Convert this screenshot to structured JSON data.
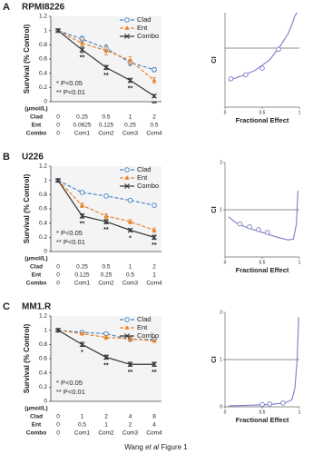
{
  "chart_data": [
    {
      "type": "line",
      "panel": "A",
      "title": "RPMI8226",
      "ylabel": "Survival (% Control)",
      "x_unit": "(µmol/L)",
      "categories": [
        "0",
        "Com1",
        "Com2",
        "Com3",
        "Com4"
      ],
      "ylim": [
        0,
        1.2
      ],
      "yticks": [
        0,
        0.2,
        0.4,
        0.6,
        0.8,
        1,
        1.2
      ],
      "series": [
        {
          "name": "Clad",
          "color": "#4a86c5",
          "marker": "circle",
          "dashed": true,
          "values": [
            1,
            0.88,
            0.75,
            0.55,
            0.45
          ],
          "errors": [
            0.02,
            0.04,
            0.05,
            0.04,
            0.03
          ],
          "doses": [
            0,
            0.25,
            0.5,
            1,
            2
          ]
        },
        {
          "name": "Ent",
          "color": "#e8822a",
          "marker": "triangle",
          "dashed": true,
          "values": [
            1,
            0.82,
            0.72,
            0.58,
            0.3
          ],
          "errors": [
            0.02,
            0.05,
            0.06,
            0.05,
            0.04
          ],
          "doses": [
            0,
            0.0625,
            0.125,
            0.25,
            0.5
          ]
        },
        {
          "name": "Combo",
          "color": "#333333",
          "marker": "x",
          "dashed": false,
          "values": [
            1,
            0.73,
            0.48,
            0.3,
            0.08
          ],
          "errors": [
            0.02,
            0.04,
            0.03,
            0.03,
            0.02
          ]
        }
      ],
      "stars": [
        null,
        "**",
        "**",
        "**",
        "**"
      ],
      "significance": [
        "* P<0.05",
        "** P<0.01"
      ]
    },
    {
      "type": "ci",
      "xlabel": "Fractional Effect",
      "ylabel": "CI",
      "xlim": [
        0,
        1
      ],
      "ylim": [
        0,
        1.6
      ],
      "xticks": [
        0,
        0.5,
        1
      ],
      "yticks": [],
      "reference": 1,
      "color": "#7b7bc8",
      "curve": {
        "x": [
          0.05,
          0.2,
          0.4,
          0.6,
          0.75,
          0.85,
          0.9,
          0.94,
          0.97
        ],
        "y": [
          0.45,
          0.52,
          0.62,
          0.8,
          1.05,
          1.25,
          1.4,
          1.55,
          1.6
        ]
      },
      "points": {
        "x": [
          0.08,
          0.28,
          0.5,
          0.72
        ],
        "y": [
          0.48,
          0.55,
          0.66,
          0.98
        ]
      }
    },
    {
      "type": "line",
      "panel": "B",
      "title": "U226",
      "ylabel": "Survival (% Control)",
      "x_unit": "(µmol/L)",
      "categories": [
        "0",
        "Com1",
        "Com2",
        "Com3",
        "Com4"
      ],
      "ylim": [
        0,
        1.2
      ],
      "yticks": [
        0,
        0.2,
        0.4,
        0.6,
        0.8,
        1,
        1.2
      ],
      "series": [
        {
          "name": "Clad",
          "color": "#4a86c5",
          "marker": "circle",
          "dashed": true,
          "values": [
            1,
            0.83,
            0.78,
            0.72,
            0.65
          ],
          "errors": [
            0.02,
            0.02,
            0.02,
            0.02,
            0.02
          ],
          "doses": [
            0,
            0.25,
            0.5,
            1,
            2
          ]
        },
        {
          "name": "Ent",
          "color": "#e8822a",
          "marker": "triangle",
          "dashed": true,
          "values": [
            1,
            0.65,
            0.5,
            0.42,
            0.3
          ],
          "errors": [
            0.02,
            0.03,
            0.03,
            0.03,
            0.03
          ],
          "doses": [
            0,
            0.125,
            0.25,
            0.5,
            1
          ]
        },
        {
          "name": "Combo",
          "color": "#333333",
          "marker": "x",
          "dashed": false,
          "values": [
            1,
            0.5,
            0.42,
            0.3,
            0.2
          ],
          "errors": [
            0.02,
            0.03,
            0.03,
            0.02,
            0.03
          ]
        }
      ],
      "stars": [
        null,
        "**",
        "**",
        "*",
        "**"
      ],
      "significance": [
        "* P<0.05",
        "** P<0.01"
      ]
    },
    {
      "type": "ci",
      "xlabel": "Fractional Effect",
      "ylabel": "CI",
      "xlim": [
        0,
        1
      ],
      "ylim": [
        0,
        2
      ],
      "xticks": [
        0,
        0.5,
        1
      ],
      "yticks": [
        1,
        2
      ],
      "reference": 1,
      "color": "#7b7bc8",
      "curve": {
        "x": [
          0.05,
          0.15,
          0.3,
          0.5,
          0.7,
          0.85,
          0.92,
          0.96,
          0.98
        ],
        "y": [
          0.85,
          0.72,
          0.62,
          0.52,
          0.42,
          0.36,
          0.38,
          0.7,
          1.4
        ]
      },
      "points": {
        "x": [
          0.2,
          0.33,
          0.45,
          0.57
        ],
        "y": [
          0.7,
          0.64,
          0.58,
          0.52
        ]
      }
    },
    {
      "type": "line",
      "panel": "C",
      "title": "MM1.R",
      "ylabel": "Survival (% Control)",
      "x_unit": "(µmol/L)",
      "categories": [
        "0",
        "Com1",
        "Com2",
        "Com3",
        "Com4"
      ],
      "ylim": [
        0,
        1.2
      ],
      "yticks": [
        0,
        0.2,
        0.4,
        0.6,
        0.8,
        1,
        1.2
      ],
      "series": [
        {
          "name": "Clad",
          "color": "#4a86c5",
          "marker": "circle",
          "dashed": true,
          "values": [
            1,
            0.97,
            0.95,
            0.87,
            0.87
          ],
          "errors": [
            0.02,
            0.02,
            0.02,
            0.02,
            0.02
          ],
          "doses": [
            0,
            1,
            2,
            4,
            8
          ]
        },
        {
          "name": "Ent",
          "color": "#e8822a",
          "marker": "triangle",
          "dashed": true,
          "values": [
            1,
            0.95,
            0.9,
            0.88,
            0.85
          ],
          "errors": [
            0.02,
            0.02,
            0.03,
            0.03,
            0.02
          ],
          "doses": [
            0,
            0.5,
            1,
            2,
            4
          ]
        },
        {
          "name": "Combo",
          "color": "#333333",
          "marker": "x",
          "dashed": false,
          "values": [
            1,
            0.8,
            0.62,
            0.52,
            0.52
          ],
          "errors": [
            0.02,
            0.03,
            0.03,
            0.03,
            0.03
          ]
        }
      ],
      "stars": [
        null,
        "*",
        "**",
        "**",
        "**"
      ],
      "significance": [
        "* P<0.05",
        "** P<0.01"
      ]
    },
    {
      "type": "ci",
      "xlabel": "Fractional Effect",
      "ylabel": "CI",
      "xlim": [
        0,
        1
      ],
      "ylim": [
        0,
        2
      ],
      "xticks": [
        0,
        0.5,
        1
      ],
      "yticks": [
        0,
        1,
        2
      ],
      "reference": 1,
      "color": "#7b7bc8",
      "curve": {
        "x": [
          0.05,
          0.3,
          0.6,
          0.8,
          0.9,
          0.94,
          0.97,
          0.99
        ],
        "y": [
          0.02,
          0.03,
          0.05,
          0.08,
          0.15,
          0.4,
          1.0,
          1.9
        ]
      },
      "points": {
        "x": [
          0.5,
          0.6,
          0.78
        ],
        "y": [
          0.05,
          0.06,
          0.08
        ]
      }
    }
  ],
  "footer": [
    "Wang ",
    "et al",
    " Figure 1"
  ]
}
